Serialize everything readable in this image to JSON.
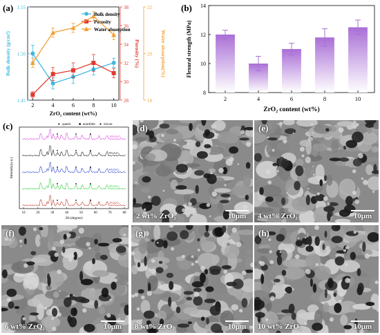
{
  "panels": {
    "a": "(a)",
    "b": "(b)",
    "c": "(c)",
    "d": "(d)",
    "e": "(e)",
    "f": "(f)",
    "g": "(g)",
    "h": "(h)"
  },
  "chart_data": [
    {
      "type": "line",
      "x": [
        2,
        4,
        6,
        8,
        10
      ],
      "xlabel": "ZrO₂ content (wt%)",
      "y_left_label": "Bulk density (g/cm³)",
      "y_left_ticks": [
        "1.45",
        "1.50",
        "1.55"
      ],
      "y_left_lim": [
        1.45,
        1.55
      ],
      "y_right1_label": "Porosity (%)",
      "y_right1_ticks": [
        "28",
        "30",
        "32",
        "34",
        "36",
        "38"
      ],
      "y_right1_lim": [
        28,
        38
      ],
      "y_right2_label": "Water absorption(%)",
      "y_right2_ticks": [
        "18",
        "20",
        "22"
      ],
      "y_right2_lim": [
        18,
        22
      ],
      "series": [
        {
          "name": "Bulk density",
          "axis": "left",
          "color": "#3fb7e0",
          "marker": "circle",
          "values": [
            1.5,
            1.468,
            1.475,
            1.483,
            1.49
          ],
          "err": [
            0.009,
            0.006,
            0.007,
            0.006,
            0.005
          ]
        },
        {
          "name": "Porosity",
          "axis": "right1",
          "color": "#e23b30",
          "marker": "square",
          "values": [
            28.6,
            30.8,
            31.2,
            32.0,
            30.9
          ],
          "err": [
            0.3,
            0.7,
            0.8,
            0.9,
            0.5
          ]
        },
        {
          "name": "Water absorption",
          "axis": "right2",
          "color": "#f2a033",
          "marker": "triangle",
          "values": [
            19.6,
            20.9,
            21.1,
            21.6,
            20.8
          ],
          "err": [
            0.2,
            0.2,
            0.2,
            0.2,
            0.2
          ]
        }
      ],
      "legend": "top-right"
    },
    {
      "type": "bar",
      "categories": [
        "2",
        "4",
        "6",
        "8",
        "10"
      ],
      "values": [
        12.0,
        10.0,
        11.0,
        11.8,
        12.5
      ],
      "err": [
        0.3,
        0.5,
        0.4,
        0.6,
        0.5
      ],
      "ylabel": "Flexural strength (MPa)",
      "xlabel": "ZrO₂ content (wt%)",
      "ylim": [
        8,
        14
      ],
      "yticks": [
        "8",
        "10",
        "12",
        "14"
      ],
      "color": "#a96fd6"
    },
    {
      "type": "line",
      "xlabel": "2θ (degree)",
      "ylabel": "Intensity(a.u.)",
      "xticks": [
        "10",
        "20",
        "30",
        "40",
        "50",
        "60",
        "70",
        "80"
      ],
      "legend_items": [
        "quartz",
        "anorthite",
        "zircon"
      ],
      "series": [
        {
          "name": "10%ZrO₂",
          "color": "#e040e0"
        },
        {
          "name": "8%ZrO₂",
          "color": "#222222"
        },
        {
          "name": "6%ZrO₂",
          "color": "#2a3fd0"
        },
        {
          "name": "4%ZrO₂",
          "color": "#2fcf3a"
        },
        {
          "name": "2%ZrO₂",
          "color": "#c0392b"
        }
      ]
    }
  ],
  "sem_images": [
    {
      "id": "d",
      "caption": "2 wt% ZrO₂",
      "scale": "10μm"
    },
    {
      "id": "e",
      "caption": "4 wt% ZrO₂",
      "scale": "10μm"
    },
    {
      "id": "f",
      "caption": "6 wt% ZrO₂",
      "scale": "10μm"
    },
    {
      "id": "g",
      "caption": "8 wt% ZrO₂",
      "scale": "10μm"
    },
    {
      "id": "h",
      "caption": "10 wt% ZrO₂",
      "scale": "10μm"
    }
  ]
}
